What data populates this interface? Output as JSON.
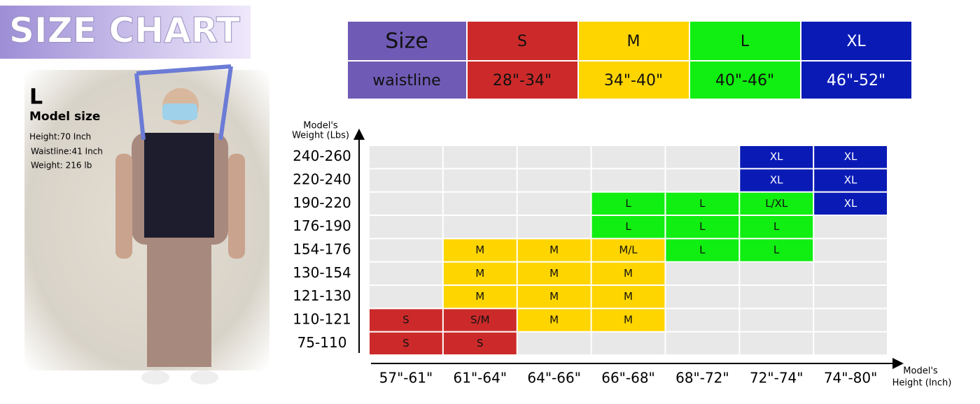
{
  "header": {
    "title": "SIZE CHART"
  },
  "model": {
    "size": "L",
    "caption": "Model size",
    "lines": [
      "Height:70 Inch",
      "Waistline:41 Inch",
      "Weight:  216 lb"
    ]
  },
  "size_table": {
    "row_labels": [
      "Size",
      "waistline"
    ],
    "sizes": [
      {
        "size": "S",
        "waist": "28\"-34\"",
        "color": "#cc2a2a"
      },
      {
        "size": "M",
        "waist": "34\"-40\"",
        "color": "#ffd500"
      },
      {
        "size": "L",
        "waist": "40\"-46\"",
        "color": "#11ee11"
      },
      {
        "size": "XL",
        "waist": "46\"-52\"",
        "color": "#0a1bb5"
      }
    ]
  },
  "grid": {
    "y_label": [
      "Model's",
      "Weight (Lbs)"
    ],
    "x_label": [
      "Model's",
      "Height (Inch)"
    ],
    "rows": [
      "240-260",
      "220-240",
      "190-220",
      "176-190",
      "154-176",
      "130-154",
      "121-130",
      "110-121",
      "75-110"
    ],
    "columns": [
      "57\"-61\"",
      "61\"-64\"",
      "64\"-66\"",
      "66\"-68\"",
      "68\"-72\"",
      "72\"-74\"",
      "74\"-80\""
    ],
    "cells": [
      [
        null,
        null,
        null,
        null,
        null,
        "XL",
        "XL"
      ],
      [
        null,
        null,
        null,
        null,
        null,
        "XL",
        "XL"
      ],
      [
        null,
        null,
        null,
        "L",
        "L",
        "L/XL",
        "XL"
      ],
      [
        null,
        null,
        null,
        "L",
        "L",
        "L",
        null
      ],
      [
        null,
        "M",
        "M",
        "M/L",
        "L",
        "L",
        null
      ],
      [
        null,
        "M",
        "M",
        "M",
        null,
        null,
        null
      ],
      [
        null,
        "M",
        "M",
        "M",
        null,
        null,
        null
      ],
      [
        "S",
        "S/M",
        "M",
        "M",
        null,
        null,
        null
      ],
      [
        "S",
        "S",
        null,
        null,
        null,
        null,
        null
      ]
    ]
  }
}
